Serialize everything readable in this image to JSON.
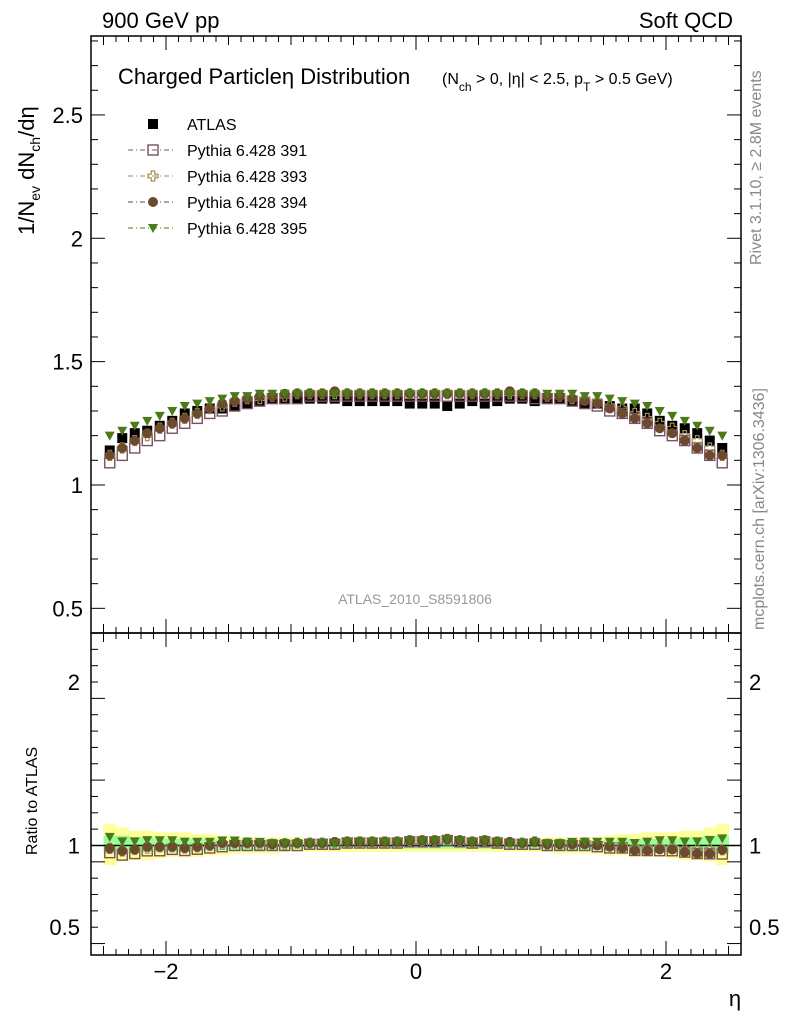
{
  "header": {
    "left": "900 GeV pp",
    "right": "Soft QCD"
  },
  "side_labels": {
    "top": "Rivet 3.1.10, ≥ 2.8M events",
    "bottom": "mcplots.cern.ch [arXiv:1306.3436]"
  },
  "chart_data": [
    {
      "panel": "main",
      "type": "scatter",
      "title_main": "Charged Particle",
      "title_eta": "η",
      "title_dist": " Distribution",
      "title_cond": "(N_ch > 0, |η| < 2.5, p_T > 0.5 GeV)",
      "ylabel": "1/N_ev dN_ch/dη",
      "watermark": "ATLAS_2010_S8591806",
      "xlim": [
        -2.6,
        2.6
      ],
      "ylim": [
        0.4,
        2.82
      ],
      "yticks": [
        "0.5",
        "1",
        "1.5",
        "2",
        "2.5"
      ],
      "legend_position": "top-left",
      "x": [
        -2.45,
        -2.35,
        -2.25,
        -2.15,
        -2.05,
        -1.95,
        -1.85,
        -1.75,
        -1.65,
        -1.55,
        -1.45,
        -1.35,
        -1.25,
        -1.15,
        -1.05,
        -0.95,
        -0.85,
        -0.75,
        -0.65,
        -0.55,
        -0.45,
        -0.35,
        -0.25,
        -0.15,
        -0.05,
        0.05,
        0.15,
        0.25,
        0.35,
        0.45,
        0.55,
        0.65,
        0.75,
        0.85,
        0.95,
        1.05,
        1.15,
        1.25,
        1.35,
        1.45,
        1.55,
        1.65,
        1.75,
        1.85,
        1.95,
        2.05,
        2.15,
        2.25,
        2.35,
        2.45
      ],
      "series": [
        {
          "name": "ATLAS",
          "color": "#000000",
          "marker": "square-filled",
          "values": [
            1.14,
            1.19,
            1.21,
            1.22,
            1.24,
            1.26,
            1.29,
            1.3,
            1.31,
            1.31,
            1.32,
            1.33,
            1.34,
            1.35,
            1.35,
            1.35,
            1.35,
            1.35,
            1.35,
            1.34,
            1.34,
            1.34,
            1.34,
            1.34,
            1.33,
            1.33,
            1.33,
            1.32,
            1.33,
            1.34,
            1.33,
            1.34,
            1.35,
            1.35,
            1.34,
            1.35,
            1.35,
            1.34,
            1.33,
            1.33,
            1.32,
            1.31,
            1.31,
            1.29,
            1.26,
            1.24,
            1.23,
            1.21,
            1.18,
            1.15
          ]
        },
        {
          "name": "Pythia 6.428 391",
          "color": "#7b4f63",
          "marker": "square-open",
          "values": [
            1.09,
            1.12,
            1.15,
            1.18,
            1.2,
            1.23,
            1.25,
            1.27,
            1.29,
            1.3,
            1.32,
            1.33,
            1.34,
            1.35,
            1.35,
            1.35,
            1.36,
            1.36,
            1.36,
            1.36,
            1.36,
            1.36,
            1.36,
            1.36,
            1.36,
            1.36,
            1.36,
            1.36,
            1.36,
            1.36,
            1.36,
            1.36,
            1.36,
            1.36,
            1.35,
            1.35,
            1.35,
            1.34,
            1.33,
            1.32,
            1.3,
            1.29,
            1.27,
            1.25,
            1.22,
            1.2,
            1.18,
            1.15,
            1.12,
            1.09
          ]
        },
        {
          "name": "Pythia 6.428 393",
          "color": "#a08c5a",
          "marker": "cross-open",
          "values": [
            1.12,
            1.15,
            1.18,
            1.2,
            1.23,
            1.25,
            1.27,
            1.29,
            1.31,
            1.32,
            1.34,
            1.35,
            1.35,
            1.36,
            1.36,
            1.37,
            1.37,
            1.37,
            1.37,
            1.37,
            1.37,
            1.37,
            1.37,
            1.37,
            1.37,
            1.37,
            1.37,
            1.37,
            1.37,
            1.37,
            1.37,
            1.37,
            1.37,
            1.37,
            1.37,
            1.36,
            1.36,
            1.35,
            1.35,
            1.34,
            1.32,
            1.31,
            1.29,
            1.27,
            1.25,
            1.23,
            1.2,
            1.18,
            1.15,
            1.12
          ]
        },
        {
          "name": "Pythia 6.428 394",
          "color": "#6b4a2e",
          "marker": "circle-filled",
          "values": [
            1.12,
            1.15,
            1.18,
            1.21,
            1.23,
            1.25,
            1.27,
            1.29,
            1.31,
            1.33,
            1.34,
            1.35,
            1.36,
            1.36,
            1.37,
            1.37,
            1.37,
            1.37,
            1.38,
            1.37,
            1.37,
            1.37,
            1.37,
            1.37,
            1.37,
            1.37,
            1.37,
            1.37,
            1.37,
            1.37,
            1.37,
            1.37,
            1.38,
            1.37,
            1.37,
            1.36,
            1.36,
            1.35,
            1.34,
            1.33,
            1.31,
            1.29,
            1.27,
            1.25,
            1.23,
            1.21,
            1.18,
            1.15,
            1.12,
            1.12
          ]
        },
        {
          "name": "Pythia 6.428 395",
          "color": "#4a7a1a",
          "marker": "triangle-down-filled",
          "values": [
            1.2,
            1.22,
            1.24,
            1.26,
            1.28,
            1.3,
            1.32,
            1.33,
            1.34,
            1.35,
            1.36,
            1.36,
            1.37,
            1.37,
            1.37,
            1.37,
            1.37,
            1.37,
            1.37,
            1.37,
            1.37,
            1.37,
            1.37,
            1.37,
            1.37,
            1.37,
            1.37,
            1.37,
            1.37,
            1.37,
            1.37,
            1.37,
            1.37,
            1.37,
            1.37,
            1.37,
            1.37,
            1.37,
            1.36,
            1.36,
            1.35,
            1.34,
            1.33,
            1.32,
            1.3,
            1.28,
            1.26,
            1.24,
            1.22,
            1.2
          ]
        }
      ]
    },
    {
      "panel": "ratio",
      "type": "scatter",
      "ylabel": "Ratio to ATLAS",
      "xlabel": "η",
      "xlim": [
        -2.6,
        2.6
      ],
      "ylim": [
        0.33,
        2.3
      ],
      "yticks": [
        "0.5",
        "1",
        "2"
      ],
      "xticks": [
        "−2",
        "0",
        "2"
      ],
      "xtick_values": [
        -2,
        0,
        2
      ],
      "band_yellow": [
        [
          0.88,
          1.13
        ],
        [
          0.9,
          1.11
        ],
        [
          0.91,
          1.09
        ],
        [
          0.91,
          1.09
        ],
        [
          0.92,
          1.08
        ],
        [
          0.93,
          1.08
        ],
        [
          0.93,
          1.08
        ],
        [
          0.93,
          1.07
        ],
        [
          0.94,
          1.07
        ],
        [
          0.94,
          1.06
        ],
        [
          0.95,
          1.05
        ],
        [
          0.95,
          1.05
        ],
        [
          0.95,
          1.05
        ],
        [
          0.95,
          1.05
        ],
        [
          0.96,
          1.05
        ],
        [
          0.96,
          1.05
        ],
        [
          0.96,
          1.04
        ],
        [
          0.96,
          1.04
        ],
        [
          0.96,
          1.04
        ],
        [
          0.96,
          1.04
        ],
        [
          0.96,
          1.04
        ],
        [
          0.96,
          1.04
        ],
        [
          0.96,
          1.04
        ],
        [
          0.96,
          1.04
        ],
        [
          0.96,
          1.04
        ],
        [
          0.96,
          1.04
        ],
        [
          0.96,
          1.04
        ],
        [
          0.96,
          1.04
        ],
        [
          0.96,
          1.04
        ],
        [
          0.96,
          1.04
        ],
        [
          0.96,
          1.04
        ],
        [
          0.96,
          1.04
        ],
        [
          0.96,
          1.04
        ],
        [
          0.96,
          1.04
        ],
        [
          0.96,
          1.04
        ],
        [
          0.96,
          1.05
        ],
        [
          0.95,
          1.05
        ],
        [
          0.95,
          1.05
        ],
        [
          0.95,
          1.05
        ],
        [
          0.95,
          1.05
        ],
        [
          0.94,
          1.06
        ],
        [
          0.94,
          1.07
        ],
        [
          0.93,
          1.07
        ],
        [
          0.93,
          1.08
        ],
        [
          0.93,
          1.08
        ],
        [
          0.92,
          1.08
        ],
        [
          0.91,
          1.09
        ],
        [
          0.91,
          1.09
        ],
        [
          0.9,
          1.11
        ],
        [
          0.88,
          1.13
        ]
      ],
      "band_green": [
        [
          0.95,
          1.06
        ],
        [
          0.95,
          1.06
        ],
        [
          0.96,
          1.05
        ],
        [
          0.96,
          1.05
        ],
        [
          0.96,
          1.04
        ],
        [
          0.96,
          1.04
        ],
        [
          0.96,
          1.04
        ],
        [
          0.97,
          1.04
        ],
        [
          0.97,
          1.04
        ],
        [
          0.97,
          1.03
        ],
        [
          0.97,
          1.03
        ],
        [
          0.97,
          1.03
        ],
        [
          0.97,
          1.03
        ],
        [
          0.97,
          1.03
        ],
        [
          0.98,
          1.03
        ],
        [
          0.98,
          1.03
        ],
        [
          0.98,
          1.02
        ],
        [
          0.98,
          1.02
        ],
        [
          0.98,
          1.02
        ],
        [
          0.98,
          1.02
        ],
        [
          0.98,
          1.02
        ],
        [
          0.98,
          1.02
        ],
        [
          0.98,
          1.02
        ],
        [
          0.98,
          1.02
        ],
        [
          0.98,
          1.02
        ],
        [
          0.98,
          1.02
        ],
        [
          0.98,
          1.02
        ],
        [
          0.98,
          1.02
        ],
        [
          0.98,
          1.02
        ],
        [
          0.98,
          1.02
        ],
        [
          0.98,
          1.02
        ],
        [
          0.98,
          1.02
        ],
        [
          0.98,
          1.02
        ],
        [
          0.98,
          1.02
        ],
        [
          0.98,
          1.02
        ],
        [
          0.98,
          1.03
        ],
        [
          0.97,
          1.03
        ],
        [
          0.97,
          1.03
        ],
        [
          0.97,
          1.03
        ],
        [
          0.97,
          1.03
        ],
        [
          0.97,
          1.03
        ],
        [
          0.97,
          1.04
        ],
        [
          0.97,
          1.04
        ],
        [
          0.96,
          1.04
        ],
        [
          0.96,
          1.04
        ],
        [
          0.96,
          1.04
        ],
        [
          0.96,
          1.05
        ],
        [
          0.96,
          1.05
        ],
        [
          0.95,
          1.06
        ],
        [
          0.95,
          1.06
        ]
      ]
    }
  ]
}
